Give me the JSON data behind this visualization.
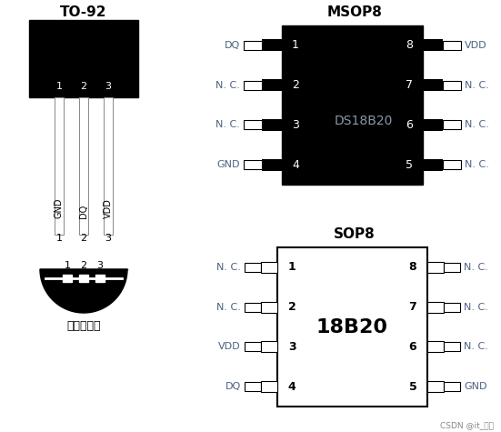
{
  "bg_color": "#ffffff",
  "title_to92": "TO-92",
  "title_msop8": "MSOP8",
  "title_sop8": "SOP8",
  "label_bottom": "（仰视图）",
  "msop8_chip_label": "DS18B20",
  "sop8_chip_label": "18B20",
  "msop8_left_pins": [
    "DQ",
    "N. C.",
    "N. C.",
    "GND"
  ],
  "msop8_right_pins": [
    "VDD",
    "N. C.",
    "N. C.",
    "N. C."
  ],
  "msop8_left_nums": [
    "1",
    "2",
    "3",
    "4"
  ],
  "msop8_right_nums": [
    "8",
    "7",
    "6",
    "5"
  ],
  "sop8_left_pins": [
    "N. C.",
    "N. C.",
    "VDD",
    "DQ"
  ],
  "sop8_right_pins": [
    "N. C.",
    "N. C.",
    "N. C.",
    "GND"
  ],
  "sop8_left_nums": [
    "1",
    "2",
    "3",
    "4"
  ],
  "sop8_right_nums": [
    "8",
    "7",
    "6",
    "5"
  ],
  "to92_pins_bottom": [
    "GND",
    "DQ",
    "VDD"
  ],
  "to92_pin_nums": [
    "1",
    "2",
    "3"
  ],
  "pin_label_color": "#4d6080",
  "watermark": "CSDN @it_阴水"
}
